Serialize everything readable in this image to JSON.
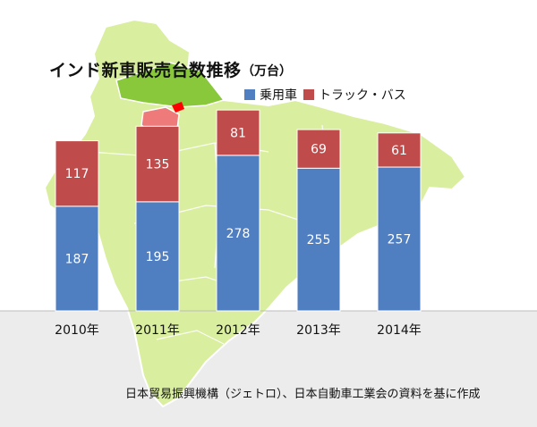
{
  "title": "インド新車販売台数推移",
  "unit": "（万台）",
  "source": "日本貿易振興機構（ジェトロ）、日本自動車工業会の資料を基に作成",
  "colors": {
    "passenger": "#4f7ec1",
    "truck_bus": "#bf4b4b",
    "map_land": "#d9ee9e",
    "map_highlight": "#88c83a",
    "state_haryana": "#ef7a7a",
    "state_delhi": "#ff0000",
    "baseline_band": "#ececec",
    "background": "#ffffff"
  },
  "chart_data": {
    "type": "bar",
    "stacked": true,
    "categories": [
      "2010年",
      "2011年",
      "2012年",
      "2013年",
      "2014年"
    ],
    "series": [
      {
        "name": "乗用車",
        "color": "#4f7ec1",
        "values": [
          187,
          195,
          278,
          255,
          257
        ]
      },
      {
        "name": "トラック・バス",
        "color": "#bf4b4b",
        "values": [
          117,
          135,
          81,
          69,
          61
        ]
      }
    ],
    "title": "インド新車販売台数推移",
    "unit": "（万台）",
    "ylim": [
      0,
      380
    ],
    "grid": false,
    "legend_position": "top-right",
    "data_labels": true
  }
}
